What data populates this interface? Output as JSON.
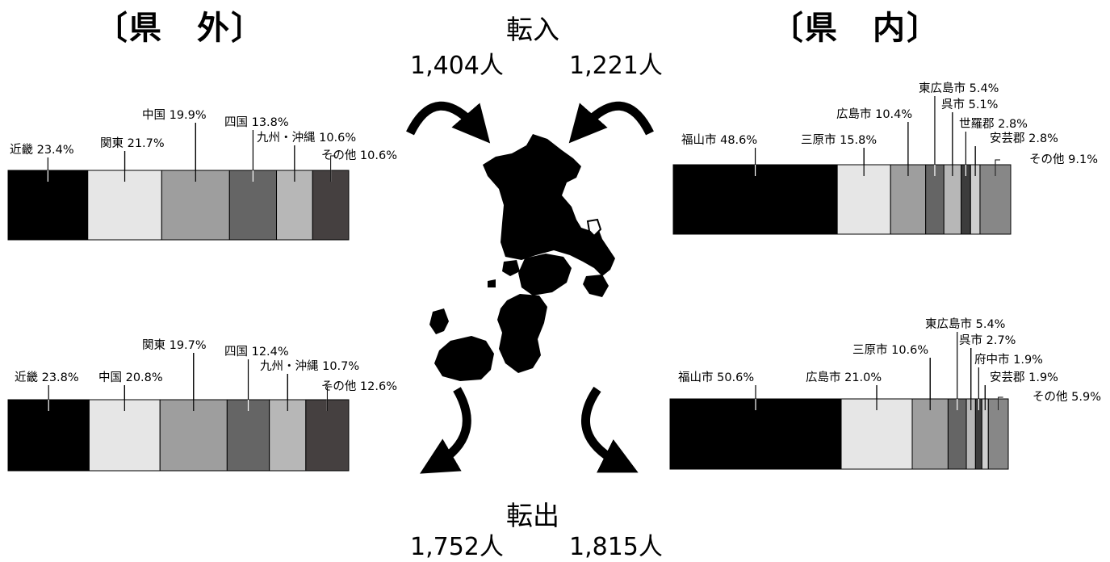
{
  "headings": {
    "outside": "〔県　外〕",
    "inside": "〔県　内〕"
  },
  "flows": {
    "in_label": "転入",
    "in_outside": "1,404人",
    "in_inside": "1,221人",
    "out_label": "転出",
    "out_outside": "1,752人",
    "out_inside": "1,815人"
  },
  "colors": [
    "#000000",
    "#e6e6e6",
    "#9e9e9e",
    "#656565",
    "#b7b7b7",
    "#454040",
    "#878787",
    "#3c3c3c",
    "#cfcfcf"
  ],
  "chart_data": [
    {
      "type": "bar",
      "orientation": "horizontal-stacked-100",
      "group": "県外",
      "flow": "転入",
      "segments": [
        {
          "name": "近畿",
          "value": 23.4,
          "label": "近畿 23.4%",
          "color": "#000000"
        },
        {
          "name": "関東",
          "value": 21.7,
          "label": "関東 21.7%",
          "color": "#e6e6e6"
        },
        {
          "name": "中国",
          "value": 19.9,
          "label": "中国 19.9%",
          "color": "#9e9e9e"
        },
        {
          "name": "四国",
          "value": 13.8,
          "label": "四国 13.8%",
          "color": "#656565"
        },
        {
          "name": "九州・沖縄",
          "value": 10.6,
          "label": "九州・沖縄 10.6%",
          "color": "#b7b7b7"
        },
        {
          "name": "その他",
          "value": 10.6,
          "label": "その他 10.6%",
          "color": "#454040"
        }
      ]
    },
    {
      "type": "bar",
      "orientation": "horizontal-stacked-100",
      "group": "県外",
      "flow": "転出",
      "segments": [
        {
          "name": "近畿",
          "value": 23.8,
          "label": "近畿 23.8%",
          "color": "#000000"
        },
        {
          "name": "中国",
          "value": 20.8,
          "label": "中国 20.8%",
          "color": "#e6e6e6"
        },
        {
          "name": "関東",
          "value": 19.7,
          "label": "関東 19.7%",
          "color": "#9e9e9e"
        },
        {
          "name": "四国",
          "value": 12.4,
          "label": "四国 12.4%",
          "color": "#656565"
        },
        {
          "name": "九州・沖縄",
          "value": 10.7,
          "label": "九州・沖縄 10.7%",
          "color": "#b7b7b7"
        },
        {
          "name": "その他",
          "value": 12.6,
          "label": "その他 12.6%",
          "color": "#454040"
        }
      ]
    },
    {
      "type": "bar",
      "orientation": "horizontal-stacked-100",
      "group": "県内",
      "flow": "転入",
      "segments": [
        {
          "name": "福山市",
          "value": 48.6,
          "label": "福山市 48.6%",
          "color": "#000000"
        },
        {
          "name": "三原市",
          "value": 15.8,
          "label": "三原市 15.8%",
          "color": "#e6e6e6"
        },
        {
          "name": "広島市",
          "value": 10.4,
          "label": "広島市 10.4%",
          "color": "#9e9e9e"
        },
        {
          "name": "東広島市",
          "value": 5.4,
          "label": "東広島市 5.4%",
          "color": "#656565"
        },
        {
          "name": "呉市",
          "value": 5.1,
          "label": "呉市 5.1%",
          "color": "#b7b7b7"
        },
        {
          "name": "世羅郡",
          "value": 2.8,
          "label": "世羅郡 2.8%",
          "color": "#3c3c3c"
        },
        {
          "name": "安芸郡",
          "value": 2.8,
          "label": "安芸郡 2.8%",
          "color": "#cfcfcf"
        },
        {
          "name": "その他",
          "value": 9.1,
          "label": "その他 9.1%",
          "color": "#878787"
        }
      ]
    },
    {
      "type": "bar",
      "orientation": "horizontal-stacked-100",
      "group": "県内",
      "flow": "転出",
      "segments": [
        {
          "name": "福山市",
          "value": 50.6,
          "label": "福山市 50.6%",
          "color": "#000000"
        },
        {
          "name": "広島市",
          "value": 21.0,
          "label": "広島市 21.0%",
          "color": "#e6e6e6"
        },
        {
          "name": "三原市",
          "value": 10.6,
          "label": "三原市 10.6%",
          "color": "#9e9e9e"
        },
        {
          "name": "東広島市",
          "value": 5.4,
          "label": "東広島市 5.4%",
          "color": "#656565"
        },
        {
          "name": "呉市",
          "value": 2.7,
          "label": "呉市 2.7%",
          "color": "#b7b7b7"
        },
        {
          "name": "府中市",
          "value": 1.9,
          "label": "府中市 1.9%",
          "color": "#3c3c3c"
        },
        {
          "name": "安芸郡",
          "value": 1.9,
          "label": "安芸郡 1.9%",
          "color": "#cfcfcf"
        },
        {
          "name": "その他",
          "value": 5.9,
          "label": "その他 5.9%",
          "color": "#878787"
        }
      ]
    }
  ]
}
